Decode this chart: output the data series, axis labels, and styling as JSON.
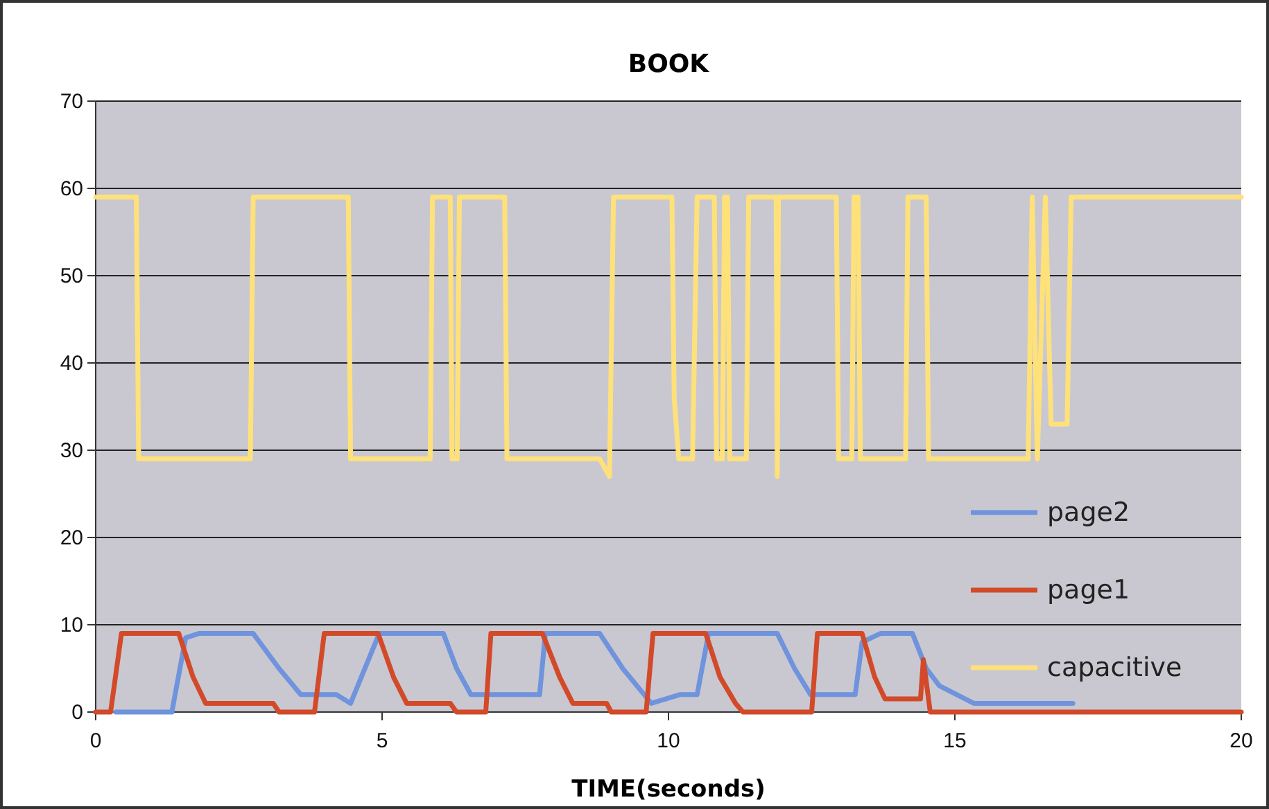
{
  "chart_data": {
    "type": "line",
    "title": "BOOK",
    "xlabel": "TIME(seconds)",
    "xlim": [
      0,
      20
    ],
    "xticks": [
      0,
      5,
      10,
      15,
      20
    ],
    "ylim": [
      0,
      70
    ],
    "yticks": [
      0,
      10,
      20,
      30,
      40,
      50,
      60,
      70
    ],
    "grid": "y",
    "legend": "right",
    "marker": "none",
    "line_style": "solid",
    "series": [
      {
        "name": "page2",
        "color": "#6f93dc",
        "x": [
          0.35,
          1.33,
          1.57,
          1.8,
          2.75,
          3.2,
          3.58,
          4.2,
          4.45,
          4.95,
          5.1,
          6.07,
          6.3,
          6.55,
          7.75,
          7.85,
          8.8,
          9.2,
          9.7,
          10.2,
          10.5,
          10.7,
          11.9,
          12.2,
          12.48,
          13.26,
          13.38,
          13.7,
          14.26,
          14.5,
          14.73,
          15.33,
          17.06
        ],
        "values": [
          0,
          0,
          8.5,
          9,
          9,
          5,
          2,
          2,
          1,
          9,
          9,
          9,
          5,
          2,
          2,
          9,
          9,
          5,
          1,
          2,
          2,
          9,
          9,
          5,
          2,
          2,
          8,
          9,
          9,
          5,
          3,
          1,
          1
        ]
      },
      {
        "name": "page1",
        "color": "#d24a2a",
        "x": [
          0,
          0.26,
          0.45,
          1.45,
          1.7,
          1.92,
          3.1,
          3.2,
          3.82,
          3.99,
          4.93,
          5.2,
          5.43,
          6.19,
          6.3,
          6.81,
          6.9,
          7.8,
          8.1,
          8.33,
          8.92,
          9.0,
          9.61,
          9.73,
          10.65,
          10.9,
          11.17,
          11.3,
          12.5,
          12.6,
          13.38,
          13.6,
          13.78,
          14.4,
          14.45,
          14.57,
          20
        ],
        "values": [
          0,
          0,
          9,
          9,
          4,
          1,
          1,
          0,
          0,
          9,
          9,
          4,
          1,
          1,
          0,
          0,
          9,
          9,
          4,
          1,
          1,
          0,
          0,
          9,
          9,
          4,
          1,
          0,
          0,
          9,
          9,
          4,
          1.5,
          1.5,
          6,
          0,
          0
        ]
      },
      {
        "name": "capacitive",
        "color": "#ffe17a",
        "x": [
          0,
          0.71,
          0.75,
          2.7,
          2.75,
          4.41,
          4.45,
          5.84,
          5.88,
          6.19,
          6.22,
          6.31,
          6.35,
          6.43,
          6.47,
          7.14,
          7.18,
          8.8,
          8.97,
          9.04,
          10.06,
          10.1,
          10.18,
          10.42,
          10.5,
          10.8,
          10.84,
          10.94,
          10.98,
          11.03,
          11.07,
          11.36,
          11.4,
          11.88,
          11.9,
          11.92,
          12.93,
          12.97,
          13.2,
          13.24,
          13.31,
          13.35,
          14.14,
          14.18,
          14.5,
          14.54,
          16.28,
          16.35,
          16.44,
          16.58,
          16.68,
          16.96,
          17.03,
          20
        ],
        "values": [
          59,
          59,
          29,
          29,
          59,
          59,
          29,
          29,
          59,
          59,
          29,
          29,
          59,
          59,
          59,
          59,
          29,
          29,
          27,
          59,
          59,
          36,
          29,
          29,
          59,
          59,
          29,
          29,
          59,
          59,
          29,
          29,
          59,
          59,
          27,
          59,
          59,
          29,
          29,
          59,
          59,
          29,
          29,
          59,
          59,
          29,
          29,
          59,
          29,
          59,
          33,
          33,
          59,
          59
        ]
      }
    ]
  }
}
